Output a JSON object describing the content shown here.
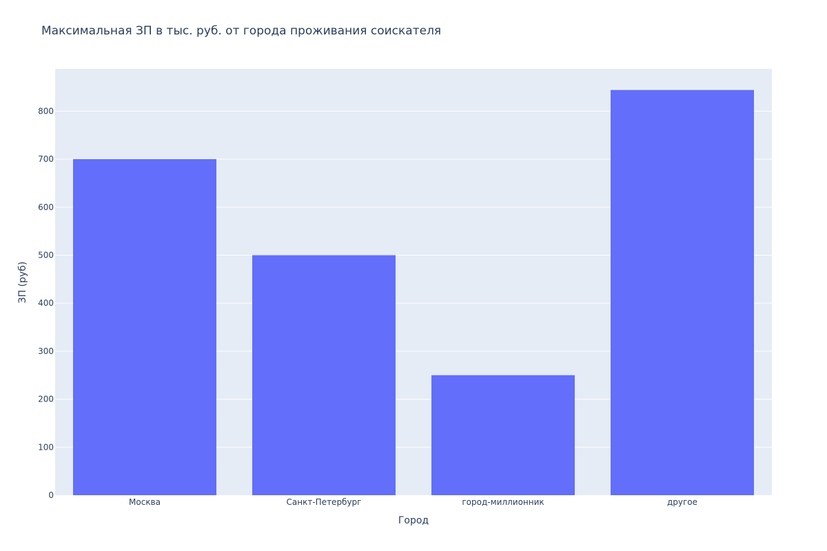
{
  "chart_data": {
    "type": "bar",
    "title": "Максимальная ЗП в тыс. руб. от города проживания соискателя",
    "xlabel": "Город",
    "ylabel": "ЗП (руб)",
    "categories": [
      "Москва",
      "Санкт-Петербург",
      "город-миллионник",
      "другое"
    ],
    "values": [
      700,
      500,
      250,
      844
    ],
    "ylim": [
      0,
      888
    ],
    "yticks": [
      0,
      100,
      200,
      300,
      400,
      500,
      600,
      700,
      800
    ],
    "grid": true,
    "legend": "none",
    "colors": {
      "bar": "#636efa",
      "plot_bg": "#e5ecf6",
      "grid": "#ffffff",
      "text": "#2a3f5f"
    }
  }
}
